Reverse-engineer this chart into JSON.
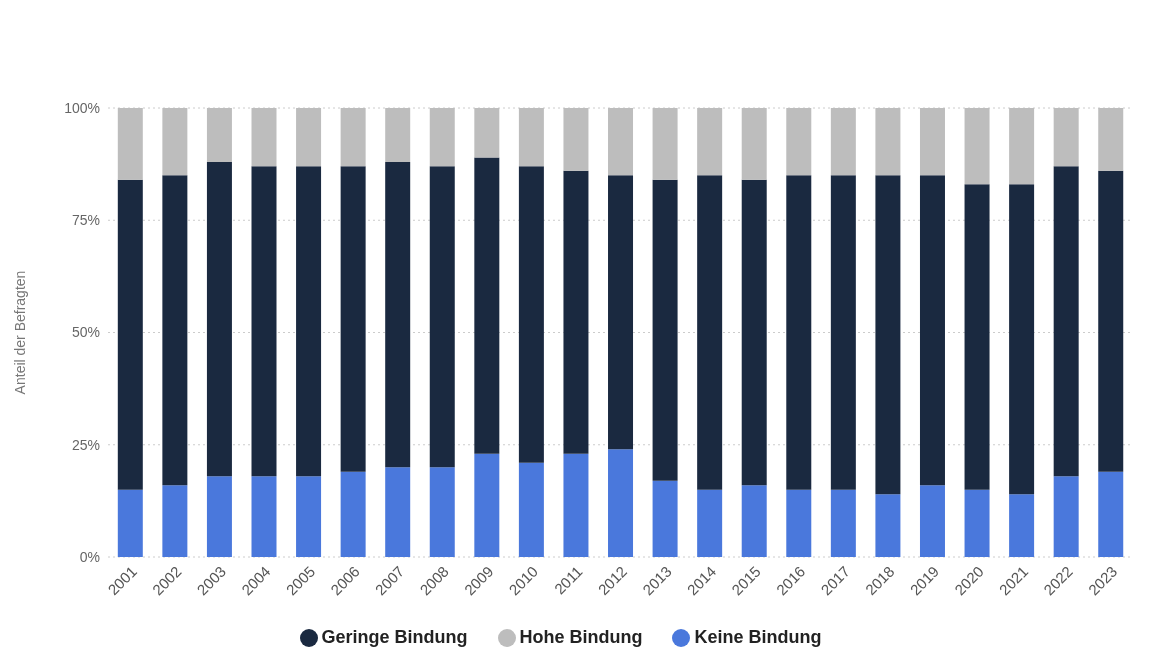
{
  "chart_data": {
    "type": "bar",
    "stacked": true,
    "ylabel": "Anteil der Befragten",
    "categories": [
      "2001",
      "2002",
      "2003",
      "2004",
      "2005",
      "2006",
      "2007",
      "2008",
      "2009",
      "2010",
      "2011",
      "2012",
      "2013",
      "2014",
      "2015",
      "2016",
      "2017",
      "2018",
      "2019",
      "2020",
      "2021",
      "2022",
      "2023"
    ],
    "series": [
      {
        "name": "Keine Bindung",
        "color": "#4a78dc",
        "values": [
          15,
          16,
          18,
          18,
          18,
          19,
          20,
          20,
          23,
          21,
          23,
          24,
          17,
          15,
          16,
          15,
          15,
          14,
          16,
          15,
          14,
          18,
          19
        ]
      },
      {
        "name": "Geringe Bindung",
        "color": "#1a2940",
        "values": [
          69,
          69,
          70,
          69,
          69,
          68,
          68,
          67,
          66,
          66,
          63,
          61,
          67,
          70,
          68,
          70,
          70,
          71,
          69,
          68,
          69,
          69,
          67
        ]
      },
      {
        "name": "Hohe Bindung",
        "color": "#bdbdbd",
        "values": [
          16,
          15,
          12,
          13,
          13,
          13,
          12,
          13,
          11,
          13,
          14,
          15,
          16,
          15,
          16,
          15,
          15,
          15,
          15,
          17,
          17,
          13,
          14
        ]
      }
    ],
    "ylim": [
      0,
      100
    ],
    "yticks": [
      {
        "value": 0,
        "label": "0%"
      },
      {
        "value": 25,
        "label": "25%"
      },
      {
        "value": 50,
        "label": "50%"
      },
      {
        "value": 75,
        "label": "75%"
      },
      {
        "value": 100,
        "label": "100%"
      }
    ],
    "grid": "y",
    "legend": "bottom"
  }
}
